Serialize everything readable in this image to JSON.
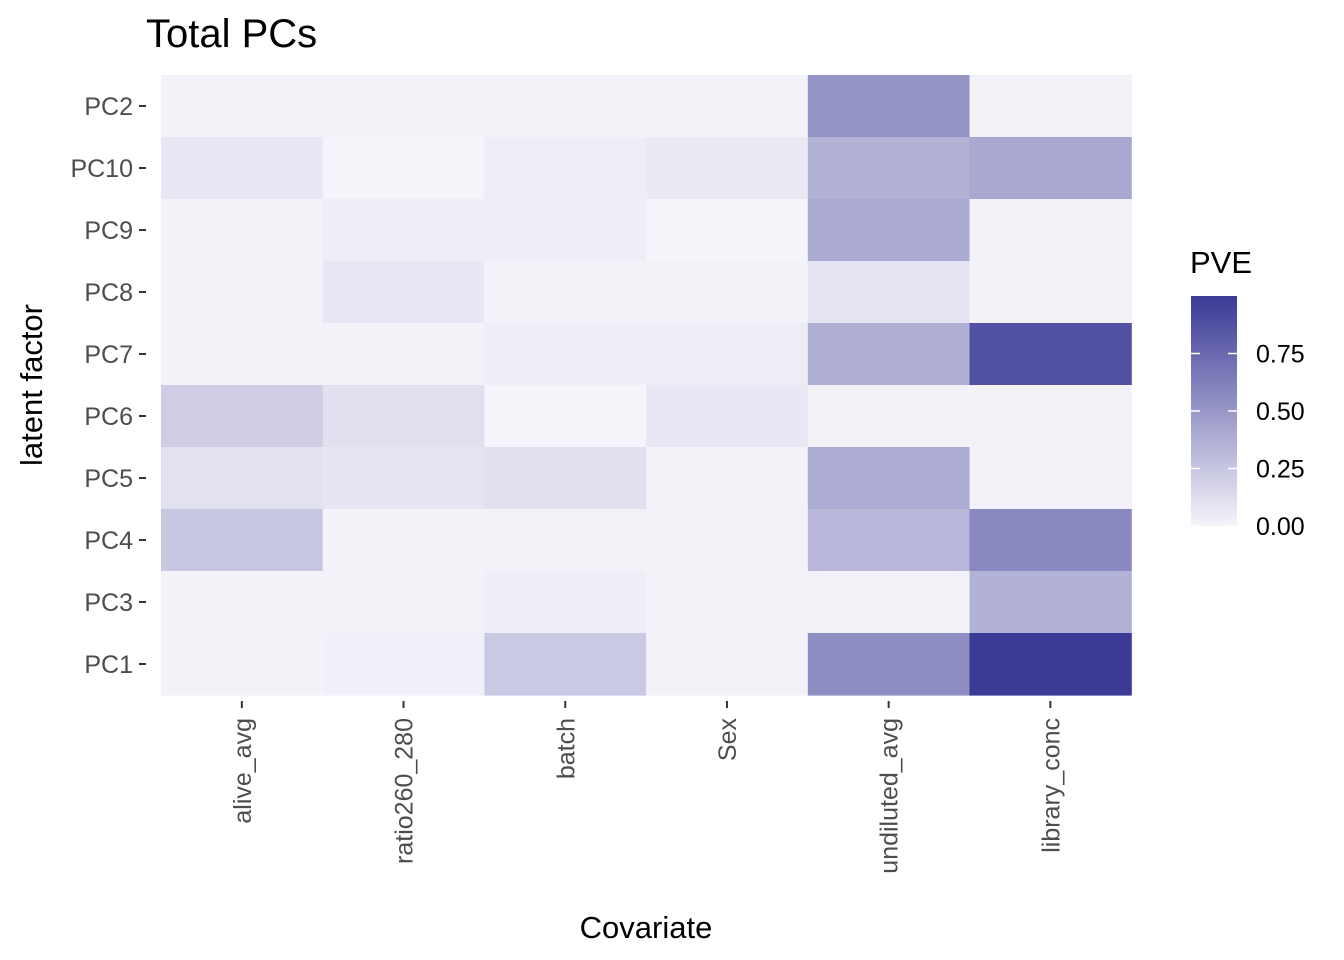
{
  "chart_data": {
    "type": "heatmap",
    "title": "Total PCs",
    "xlabel": "Covariate",
    "ylabel": "latent factor",
    "x_categories": [
      "alive_avg",
      "ratio260_280",
      "batch",
      "Sex",
      "undiluted_avg",
      "library_conc"
    ],
    "y_categories": [
      "PC2",
      "PC10",
      "PC9",
      "PC8",
      "PC7",
      "PC6",
      "PC5",
      "PC4",
      "PC3",
      "PC1"
    ],
    "values": [
      [
        0.01,
        0.01,
        0.01,
        0.01,
        0.52,
        0.01
      ],
      [
        0.07,
        0.0,
        0.04,
        0.06,
        0.36,
        0.41
      ],
      [
        0.01,
        0.03,
        0.03,
        0.0,
        0.4,
        0.01
      ],
      [
        0.01,
        0.07,
        0.01,
        0.01,
        0.09,
        0.01
      ],
      [
        0.01,
        0.01,
        0.03,
        0.04,
        0.37,
        0.88
      ],
      [
        0.21,
        0.11,
        0.0,
        0.07,
        0.01,
        0.01
      ],
      [
        0.1,
        0.08,
        0.11,
        0.01,
        0.39,
        0.01
      ],
      [
        0.24,
        0.01,
        0.01,
        0.01,
        0.32,
        0.58
      ],
      [
        0.01,
        0.01,
        0.03,
        0.01,
        0.01,
        0.36
      ],
      [
        0.01,
        0.02,
        0.23,
        0.01,
        0.55,
        1.0
      ]
    ],
    "legend": {
      "title": "PVE",
      "ticks": [
        0.0,
        0.25,
        0.5,
        0.75
      ],
      "tick_labels": [
        "0.00",
        "0.25",
        "0.50",
        "0.75"
      ],
      "range": [
        0,
        1
      ],
      "position": "right"
    },
    "color_low": "#f5f4fa",
    "color_high": "#3b3a96"
  }
}
